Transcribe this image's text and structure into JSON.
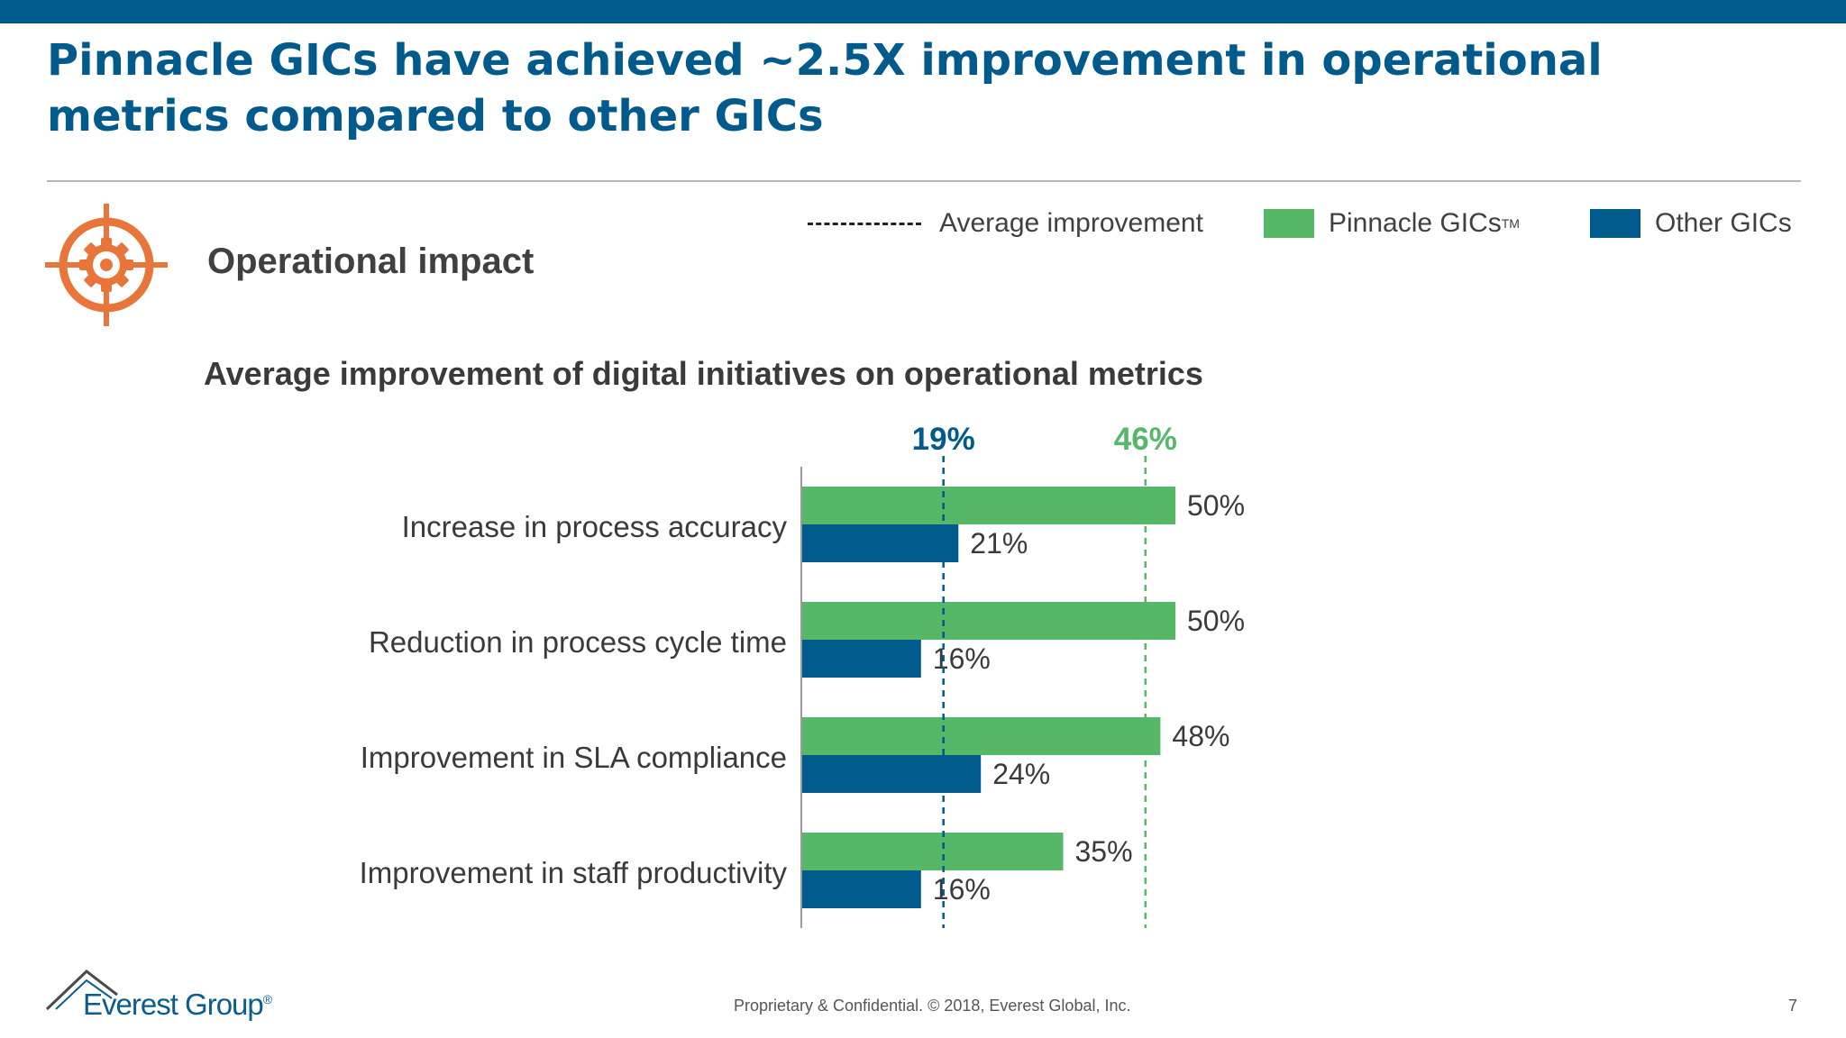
{
  "slide": {
    "title": "Pinnacle GICs have achieved ~2.5X improvement in operational metrics compared to other GICs",
    "section_title": "Operational impact",
    "chart_title": "Average improvement of digital initiatives on operational metrics",
    "footer": "Proprietary & Confidential. © 2018, Everest Global, Inc.",
    "page_number": "7",
    "logo_text": "Everest Group",
    "logo_mark": "®"
  },
  "legend": {
    "average": "Average improvement",
    "pinnacle": "Pinnacle GICs",
    "pinnacle_mark": "TM",
    "other": "Other GICs"
  },
  "colors": {
    "pinnacle": "#56b768",
    "other": "#005a8c",
    "title": "#005a8c",
    "icon": "#e8763a"
  },
  "icons": {
    "section": "target-gear-icon",
    "logo": "mountain-peak-icon"
  },
  "chart_data": {
    "type": "bar",
    "orientation": "horizontal",
    "categories": [
      "Increase in process accuracy",
      "Reduction in process cycle time",
      "Improvement in SLA compliance",
      "Improvement in staff productivity"
    ],
    "series": [
      {
        "name": "Pinnacle GICs",
        "values": [
          50,
          50,
          48,
          35
        ],
        "labels": [
          "50%",
          "50%",
          "48%",
          "35%"
        ]
      },
      {
        "name": "Other GICs",
        "values": [
          21,
          16,
          24,
          16
        ],
        "labels": [
          "21%",
          "16%",
          "24%",
          "16%"
        ]
      }
    ],
    "reference_lines": [
      {
        "series": "Other GICs",
        "value": 19,
        "label": "19%"
      },
      {
        "series": "Pinnacle GICs",
        "value": 46,
        "label": "46%"
      }
    ],
    "xlim": [
      0,
      60
    ],
    "grid": false,
    "legend_position": "top-right"
  }
}
